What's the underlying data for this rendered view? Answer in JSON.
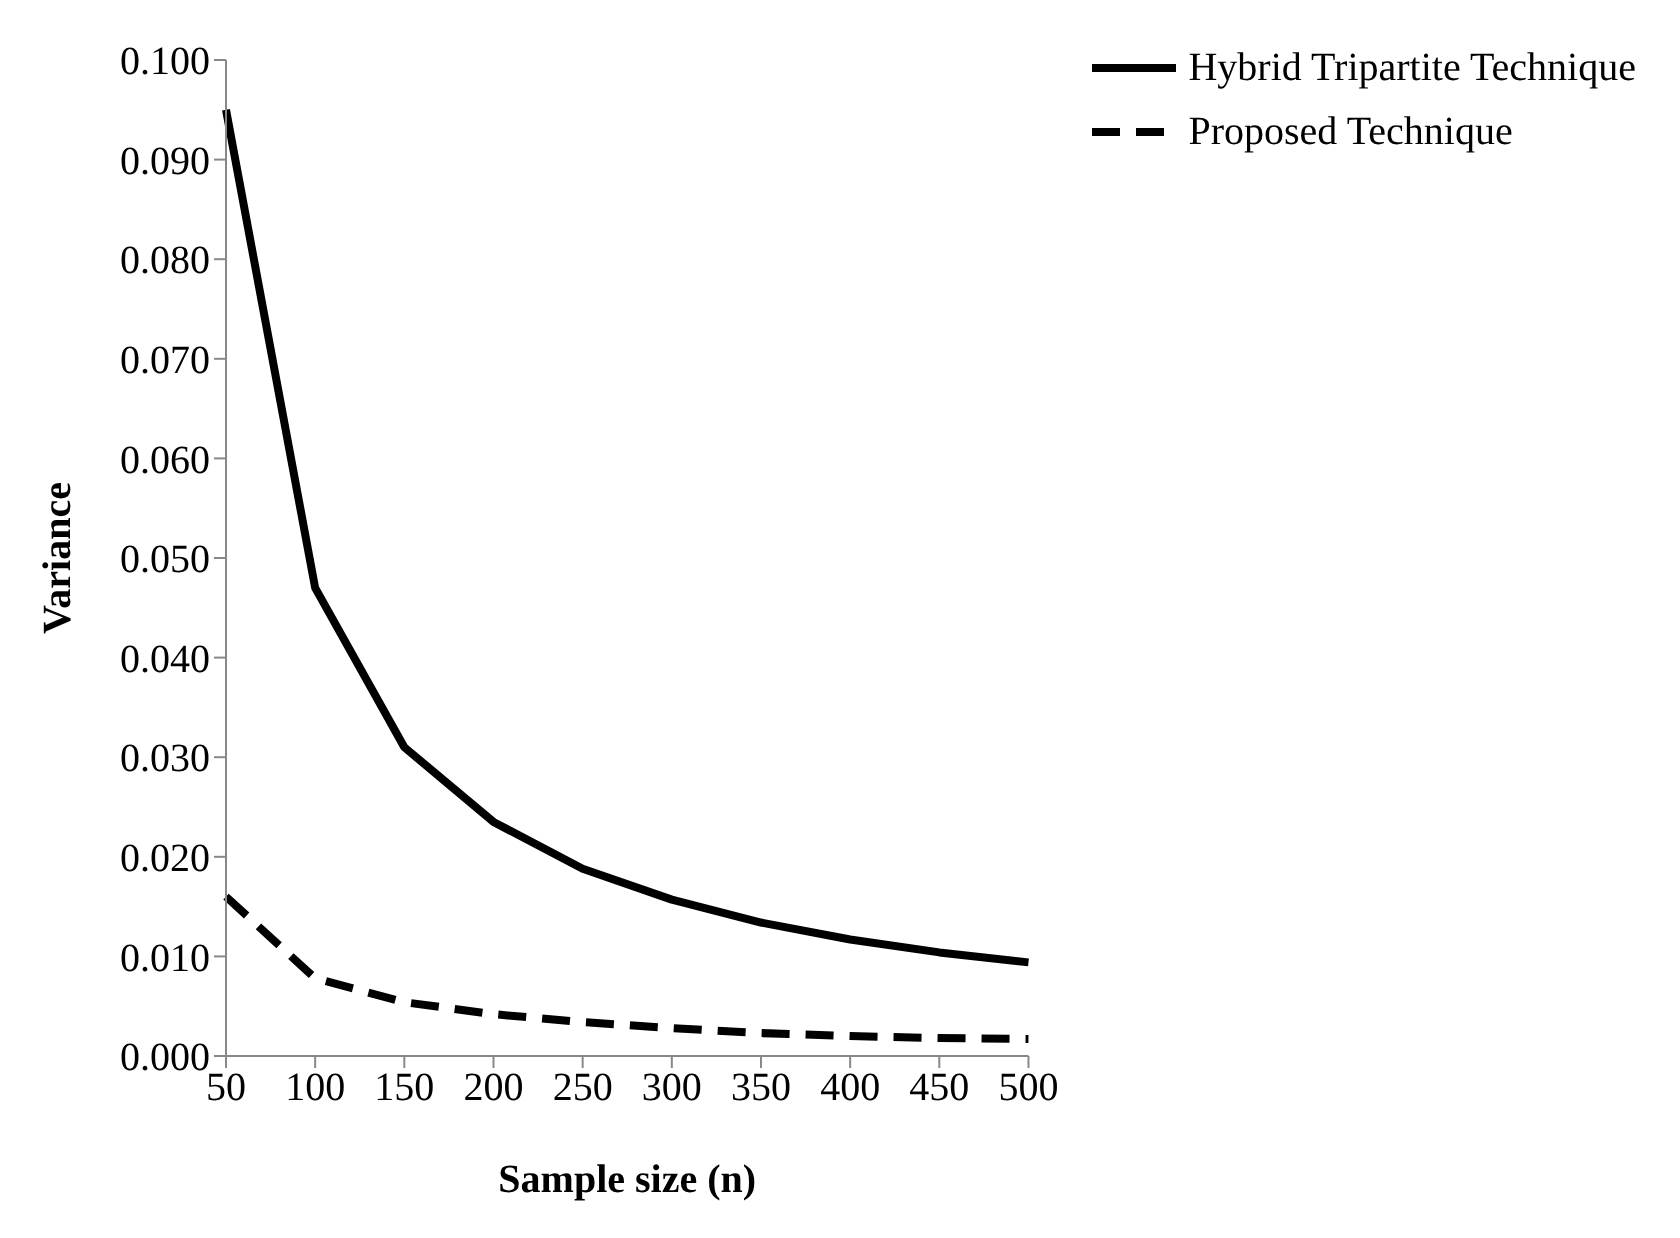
{
  "chart_data": {
    "type": "line",
    "xlabel": "Sample size (n)",
    "ylabel": "Variance",
    "categories": [
      "50",
      "100",
      "150",
      "200",
      "250",
      "300",
      "350",
      "400",
      "450",
      "500"
    ],
    "series": [
      {
        "name": "Hybrid Tripartite Technique",
        "color": "#000000",
        "line_style": "solid",
        "values": [
          0.095,
          0.047,
          0.031,
          0.0235,
          0.0188,
          0.0157,
          0.0134,
          0.0117,
          0.0104,
          0.0094
        ]
      },
      {
        "name": "Proposed Technique",
        "color": "#000000",
        "line_style": "dashed",
        "values": [
          0.016,
          0.0078,
          0.0054,
          0.0042,
          0.0034,
          0.0028,
          0.0023,
          0.002,
          0.0018,
          0.0017
        ]
      }
    ],
    "ylim": [
      0,
      0.1
    ],
    "yticks": [
      {
        "value": 0,
        "label": "0.000"
      },
      {
        "value": 0.01,
        "label": "0.010"
      },
      {
        "value": 0.02,
        "label": "0.020"
      },
      {
        "value": 0.03,
        "label": "0.030"
      },
      {
        "value": 0.04,
        "label": "0.040"
      },
      {
        "value": 0.05,
        "label": "0.050"
      },
      {
        "value": 0.06,
        "label": "0.060"
      },
      {
        "value": 0.07,
        "label": "0.070"
      },
      {
        "value": 0.08,
        "label": "0.080"
      },
      {
        "value": 0.09,
        "label": "0.090"
      },
      {
        "value": 0.1,
        "label": "0.100"
      }
    ],
    "grid": false,
    "legend": "top right",
    "marker": "none"
  }
}
